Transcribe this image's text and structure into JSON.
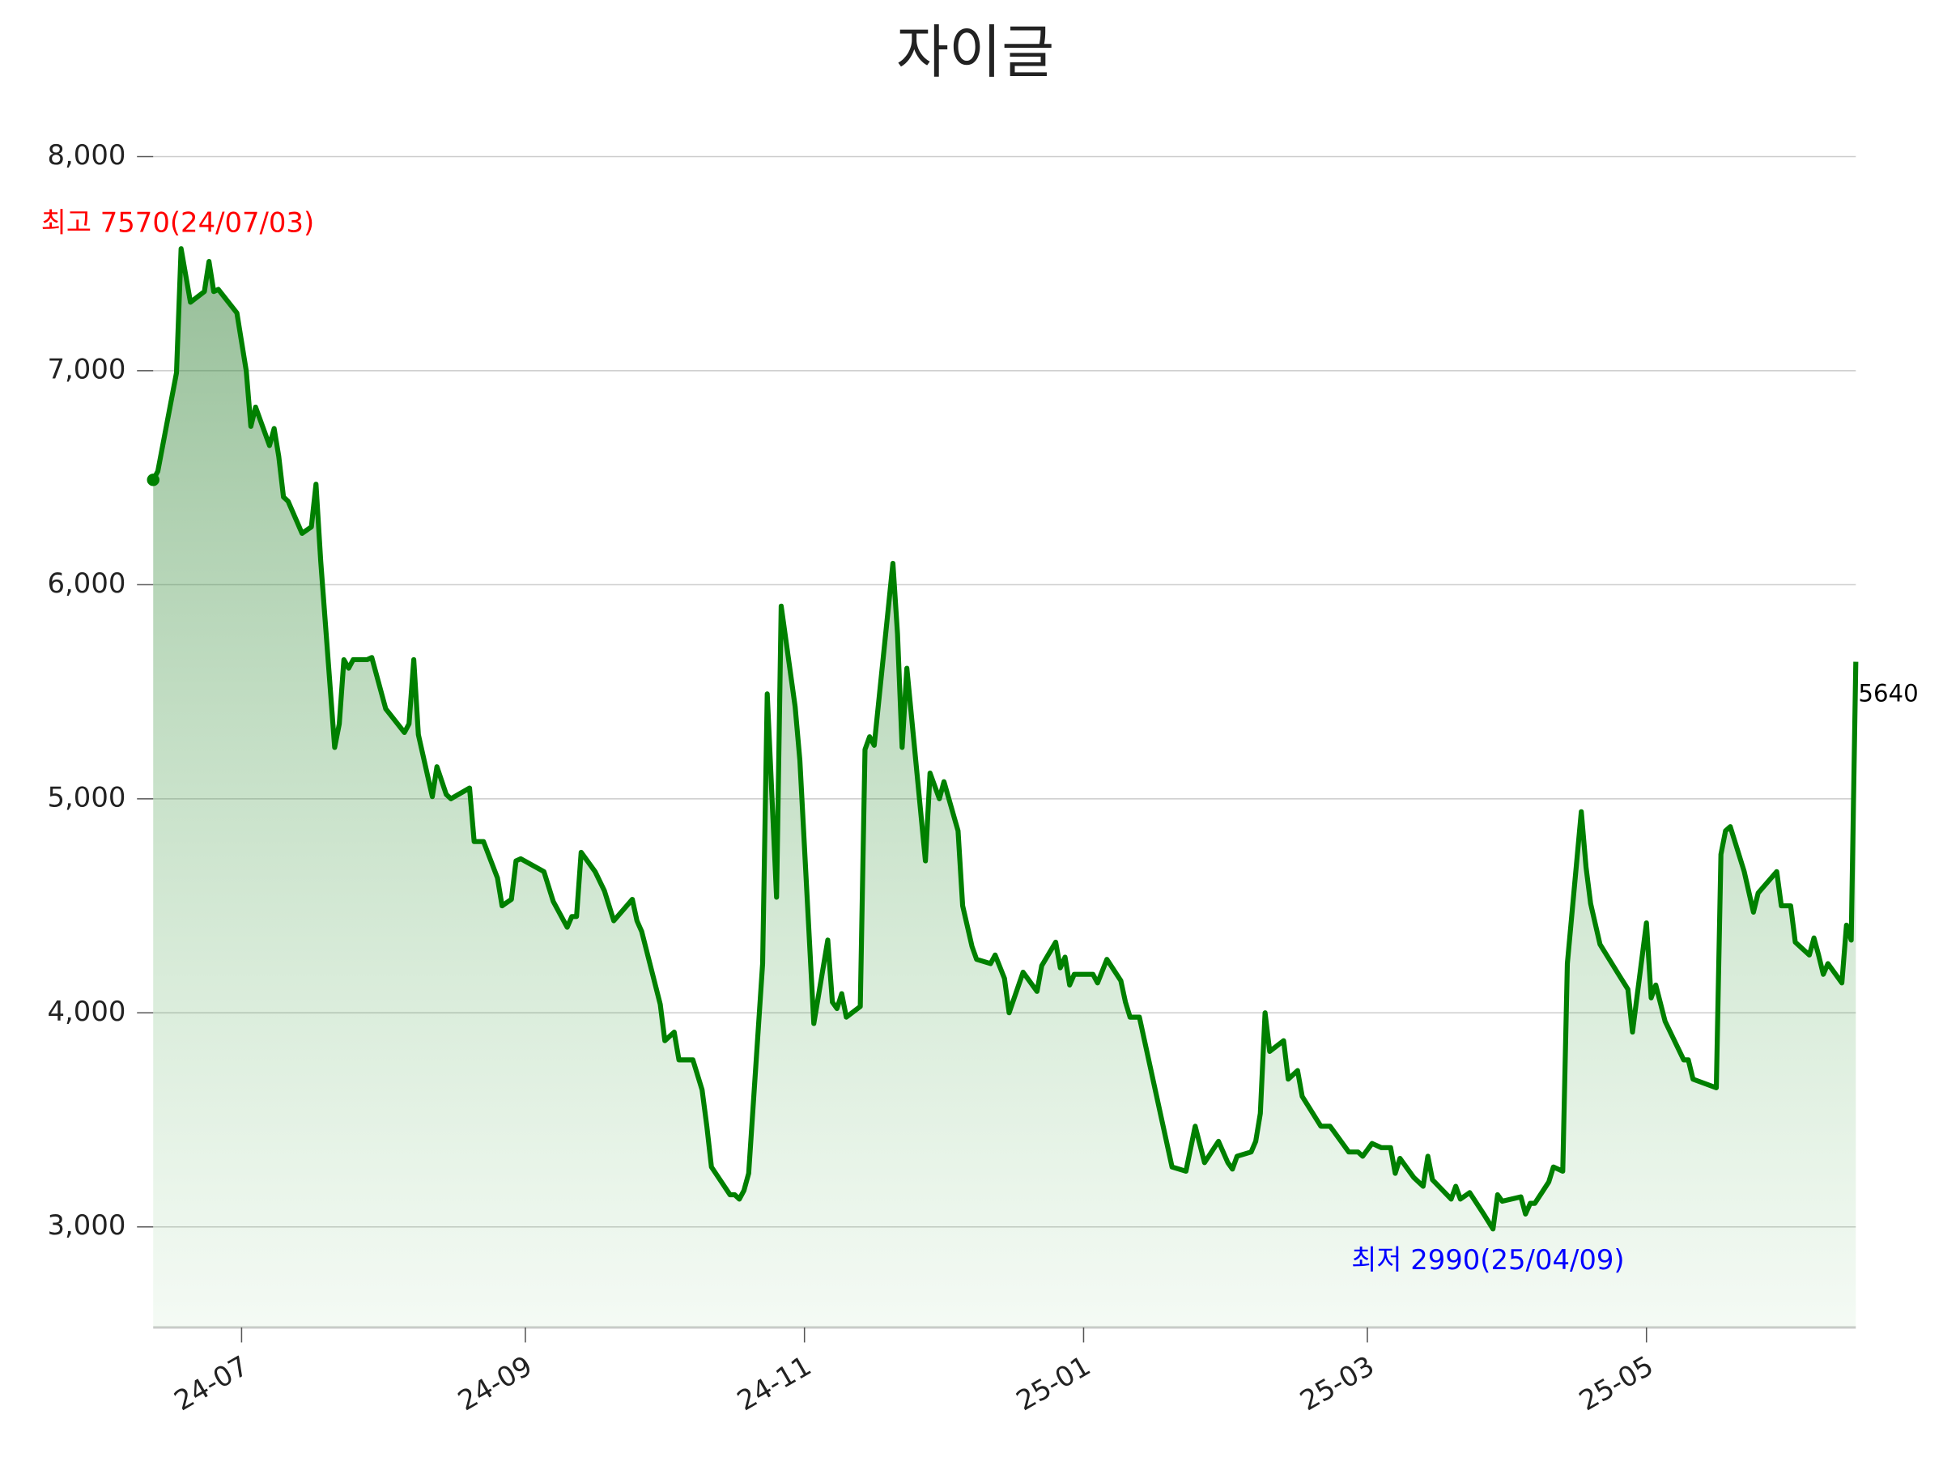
{
  "chart_data": {
    "type": "line",
    "title": "자이글",
    "color": "#008000",
    "grid": true,
    "xlim": [
      0,
      366
    ],
    "ylim": [
      2530,
      8150
    ],
    "xticks": [
      {
        "value": 19,
        "label": "24-07"
      },
      {
        "value": 80,
        "label": "24-09"
      },
      {
        "value": 140,
        "label": "24-11"
      },
      {
        "value": 200,
        "label": "25-01"
      },
      {
        "value": 261,
        "label": "25-03"
      },
      {
        "value": 321,
        "label": "25-05"
      }
    ],
    "yticks": [
      {
        "value": 3000,
        "label": "3,000"
      },
      {
        "value": 4000,
        "label": "4,000"
      },
      {
        "value": 5000,
        "label": "5,000"
      },
      {
        "value": 6000,
        "label": "6,000"
      },
      {
        "value": 7000,
        "label": "7,000"
      },
      {
        "value": 8000,
        "label": "8,000"
      }
    ],
    "x": [
      0,
      1,
      5,
      6,
      8,
      11,
      12,
      13,
      14,
      18,
      20,
      21,
      22,
      25,
      26,
      27,
      28,
      29,
      32,
      34,
      35,
      36,
      39,
      40,
      41,
      42,
      43,
      46,
      47,
      50,
      54,
      55,
      56,
      57,
      60,
      61,
      63,
      64,
      68,
      69,
      71,
      74,
      75,
      77,
      78,
      79,
      84,
      86,
      89,
      90,
      91,
      92,
      95,
      97,
      99,
      103,
      104,
      105,
      109,
      110,
      112,
      113,
      116,
      118,
      119,
      120,
      124,
      125,
      126,
      127,
      128,
      131,
      132,
      134,
      135,
      138,
      139,
      142,
      145,
      146,
      147,
      148,
      149,
      152,
      153,
      154,
      155,
      159,
      160,
      161,
      162,
      166,
      167,
      169,
      170,
      173,
      174,
      176,
      177,
      180,
      181,
      183,
      184,
      187,
      190,
      191,
      194,
      195,
      196,
      197,
      198,
      202,
      203,
      205,
      208,
      209,
      210,
      212,
      219,
      222,
      224,
      226,
      229,
      231,
      232,
      233,
      236,
      237,
      238,
      239,
      240,
      243,
      244,
      246,
      247,
      251,
      253,
      257,
      259,
      260,
      262,
      264,
      266,
      267,
      268,
      271,
      273,
      274,
      275,
      279,
      280,
      281,
      283,
      286,
      288,
      289,
      290,
      294,
      295,
      296,
      297,
      300,
      301,
      303,
      304,
      307,
      308,
      309,
      311,
      315,
      317,
      318,
      321,
      322,
      323,
      325,
      329,
      330,
      331,
      336,
      337,
      338,
      339,
      342,
      344,
      345,
      349,
      350,
      352,
      353,
      356,
      357,
      358,
      359,
      360,
      363,
      364,
      365,
      366
    ],
    "values": [
      6490,
      6530,
      6990,
      7570,
      7320,
      7370,
      7510,
      7370,
      7380,
      7270,
      7000,
      6740,
      6830,
      6650,
      6730,
      6600,
      6410,
      6390,
      6240,
      6270,
      6470,
      6110,
      5240,
      5350,
      5650,
      5610,
      5650,
      5650,
      5660,
      5420,
      5310,
      5350,
      5650,
      5300,
      5010,
      5150,
      5020,
      5000,
      5050,
      4800,
      4800,
      4630,
      4500,
      4530,
      4710,
      4720,
      4660,
      4520,
      4400,
      4450,
      4450,
      4750,
      4660,
      4570,
      4430,
      4530,
      4430,
      4380,
      4040,
      3870,
      3910,
      3780,
      3780,
      3640,
      3470,
      3280,
      3150,
      3150,
      3130,
      3170,
      3250,
      4230,
      5490,
      4540,
      5900,
      5430,
      5180,
      3950,
      4340,
      4050,
      4020,
      4090,
      3980,
      4030,
      5230,
      5290,
      5250,
      6100,
      5770,
      5240,
      5610,
      4710,
      5120,
      5000,
      5080,
      4850,
      4500,
      4310,
      4250,
      4230,
      4270,
      4160,
      4000,
      4190,
      4100,
      4220,
      4330,
      4210,
      4260,
      4130,
      4180,
      4180,
      4140,
      4250,
      4150,
      4050,
      3980,
      3980,
      3280,
      3260,
      3470,
      3300,
      3400,
      3300,
      3270,
      3330,
      3350,
      3400,
      3530,
      4000,
      3820,
      3870,
      3690,
      3730,
      3610,
      3470,
      3470,
      3350,
      3350,
      3330,
      3390,
      3370,
      3370,
      3250,
      3320,
      3230,
      3190,
      3330,
      3220,
      3130,
      3190,
      3130,
      3160,
      3060,
      2990,
      3150,
      3120,
      3140,
      3060,
      3110,
      3110,
      3210,
      3280,
      3260,
      4230,
      4940,
      4680,
      4510,
      4320,
      4180,
      4110,
      3910,
      4420,
      4070,
      4130,
      3960,
      3780,
      3780,
      3690,
      3650,
      4740,
      4850,
      4870,
      4660,
      4470,
      4560,
      4660,
      4500,
      4500,
      4330,
      4270,
      4350,
      4270,
      4180,
      4230,
      4140,
      4410,
      4340,
      5640
    ],
    "annotations": [
      {
        "text": "최고 7570(24/07/03)",
        "color": "#ff0000"
      },
      {
        "text": "최저 2990(25/04/09)",
        "color": "#0000ff"
      },
      {
        "text": "5640",
        "color": "#000000"
      }
    ]
  }
}
